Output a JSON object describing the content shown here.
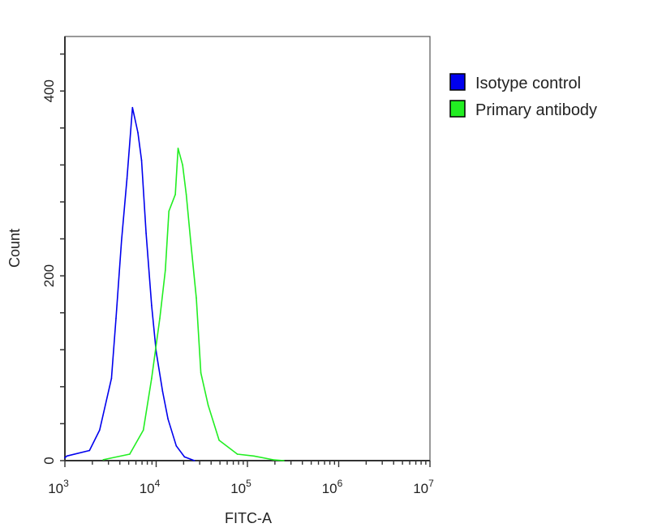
{
  "chart_data": {
    "type": "line",
    "title": "",
    "xlabel": "FITC-A",
    "ylabel": "Count",
    "xscale": "log",
    "xlim": [
      1000,
      10000000
    ],
    "ylim": [
      0,
      459
    ],
    "grid": false,
    "legend_placement": "outside-top-right",
    "x_tick_labels": [
      {
        "base": "10",
        "exp": "3",
        "value": 1000
      },
      {
        "base": "10",
        "exp": "4",
        "value": 10000
      },
      {
        "base": "10",
        "exp": "5",
        "value": 100000
      },
      {
        "base": "10",
        "exp": "6",
        "value": 1000000
      },
      {
        "base": "10",
        "exp": "7",
        "value": 10000000
      }
    ],
    "y_tick_labels": [
      "0",
      "200",
      "400"
    ],
    "y_tick_values": [
      0,
      200,
      400
    ],
    "y_minor_step": 40,
    "series": [
      {
        "name": "Isotype control",
        "color": "#0000ee",
        "x": [
          1000,
          1050,
          1860,
          2400,
          3240,
          3630,
          4170,
          4790,
          5500,
          6310,
          6920,
          7760,
          8910,
          10000,
          11750,
          13490,
          16600,
          20420,
          26300
        ],
        "y": [
          3,
          5,
          11,
          33,
          89,
          154,
          238,
          305,
          382,
          355,
          325,
          246,
          168,
          118,
          75,
          45,
          16,
          4,
          0
        ]
      },
      {
        "name": "Primary antibody",
        "color": "#22ee22",
        "x": [
          2630,
          5130,
          7240,
          8910,
          10960,
          12590,
          13800,
          16220,
          17380,
          19500,
          21380,
          23990,
          27540,
          30900,
          37150,
          48980,
          77620,
          117500,
          190500,
          251200
        ],
        "y": [
          1,
          7,
          33,
          89,
          154,
          206,
          270,
          288,
          338,
          320,
          288,
          235,
          176,
          95,
          60,
          22,
          7,
          5,
          1,
          0
        ]
      }
    ]
  }
}
